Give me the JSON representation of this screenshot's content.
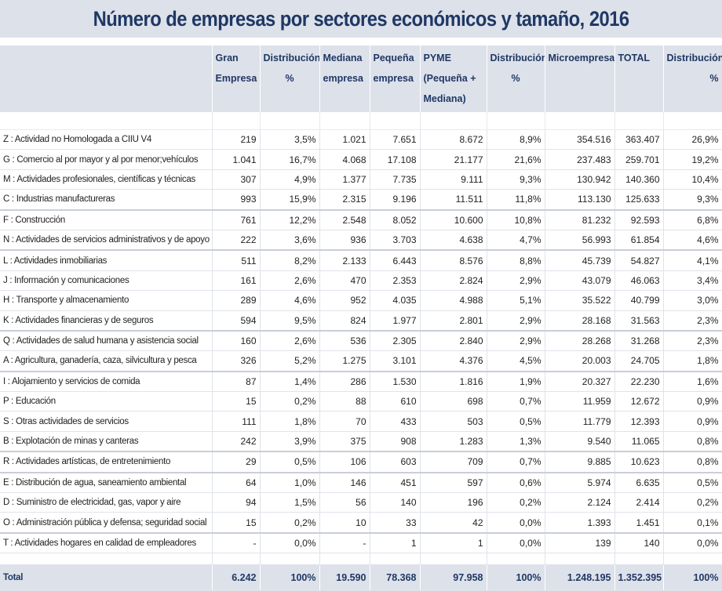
{
  "title": "Número de empresas por sectores económicos y tamaño, 2016",
  "colors": {
    "header_bg": "#dde1ea",
    "header_text": "#1f3864"
  },
  "headers": [
    "",
    "Gran Empresa",
    "Distribución %",
    "Mediana empresa",
    "Pequeña empresa",
    "PYME (Pequeña + Mediana)",
    "Distribución %",
    "Microempresa",
    "TOTAL",
    "Distribución %"
  ],
  "rows": [
    [
      "Z : Actividad no Homologada a CIIU V4",
      "219",
      "3,5%",
      "1.021",
      "7.651",
      "8.672",
      "8,9%",
      "354.516",
      "363.407",
      "26,9%"
    ],
    [
      "G : Comercio al por mayor y al por menor;vehículos",
      "1.041",
      "16,7%",
      "4.068",
      "17.108",
      "21.177",
      "21,6%",
      "237.483",
      "259.701",
      "19,2%"
    ],
    [
      "M : Actividades profesionales, científicas y técnicas",
      "307",
      "4,9%",
      "1.377",
      "7.735",
      "9.111",
      "9,3%",
      "130.942",
      "140.360",
      "10,4%"
    ],
    [
      "C : Industrias manufactureras",
      "993",
      "15,9%",
      "2.315",
      "9.196",
      "11.511",
      "11,8%",
      "113.130",
      "125.633",
      "9,3%"
    ],
    [
      "F : Construcción",
      "761",
      "12,2%",
      "2.548",
      "8.052",
      "10.600",
      "10,8%",
      "81.232",
      "92.593",
      "6,8%"
    ],
    [
      "N : Actividades de servicios administrativos y de apoyo",
      "222",
      "3,6%",
      "936",
      "3.703",
      "4.638",
      "4,7%",
      "56.993",
      "61.854",
      "4,6%"
    ],
    [
      "L : Actividades inmobiliarias",
      "511",
      "8,2%",
      "2.133",
      "6.443",
      "8.576",
      "8,8%",
      "45.739",
      "54.827",
      "4,1%"
    ],
    [
      "J : Información y comunicaciones",
      "161",
      "2,6%",
      "470",
      "2.353",
      "2.824",
      "2,9%",
      "43.079",
      "46.063",
      "3,4%"
    ],
    [
      "H : Transporte y almacenamiento",
      "289",
      "4,6%",
      "952",
      "4.035",
      "4.988",
      "5,1%",
      "35.522",
      "40.799",
      "3,0%"
    ],
    [
      "K : Actividades financieras y de seguros",
      "594",
      "9,5%",
      "824",
      "1.977",
      "2.801",
      "2,9%",
      "28.168",
      "31.563",
      "2,3%"
    ],
    [
      "Q : Actividades de salud humana y asistencia social",
      "160",
      "2,6%",
      "536",
      "2.305",
      "2.840",
      "2,9%",
      "28.268",
      "31.268",
      "2,3%"
    ],
    [
      "A : Agricultura, ganadería, caza, silvicultura y pesca",
      "326",
      "5,2%",
      "1.275",
      "3.101",
      "4.376",
      "4,5%",
      "20.003",
      "24.705",
      "1,8%"
    ],
    [
      "I : Alojamiento y servicios de comida",
      "87",
      "1,4%",
      "286",
      "1.530",
      "1.816",
      "1,9%",
      "20.327",
      "22.230",
      "1,6%"
    ],
    [
      "P : Educación",
      "15",
      "0,2%",
      "88",
      "610",
      "698",
      "0,7%",
      "11.959",
      "12.672",
      "0,9%"
    ],
    [
      "S : Otras actividades de servicios",
      "111",
      "1,8%",
      "70",
      "433",
      "503",
      "0,5%",
      "11.779",
      "12.393",
      "0,9%"
    ],
    [
      "B : Explotación de minas y canteras",
      "242",
      "3,9%",
      "375",
      "908",
      "1.283",
      "1,3%",
      "9.540",
      "11.065",
      "0,8%"
    ],
    [
      "R : Actividades artísticas, de entretenimiento",
      "29",
      "0,5%",
      "106",
      "603",
      "709",
      "0,7%",
      "9.885",
      "10.623",
      "0,8%"
    ],
    [
      "E : Distribución de agua, saneamiento ambiental",
      "64",
      "1,0%",
      "146",
      "451",
      "597",
      "0,6%",
      "5.974",
      "6.635",
      "0,5%"
    ],
    [
      "D : Suministro de electricidad, gas, vapor y aire",
      "94",
      "1,5%",
      "56",
      "140",
      "196",
      "0,2%",
      "2.124",
      "2.414",
      "0,2%"
    ],
    [
      "O : Administración pública y defensa; seguridad social",
      "15",
      "0,2%",
      "10",
      "33",
      "42",
      "0,0%",
      "1.393",
      "1.451",
      "0,1%"
    ],
    [
      "T : Actividades hogares en calidad de empleadores",
      "-",
      "0,0%",
      "-",
      "1",
      "1",
      "0,0%",
      "139",
      "140",
      "0,0%"
    ]
  ],
  "total": [
    "Total",
    "6.242",
    "100%",
    "19.590",
    "78.368",
    "97.958",
    "100%",
    "1.248.195",
    "1.352.395",
    "100%"
  ]
}
